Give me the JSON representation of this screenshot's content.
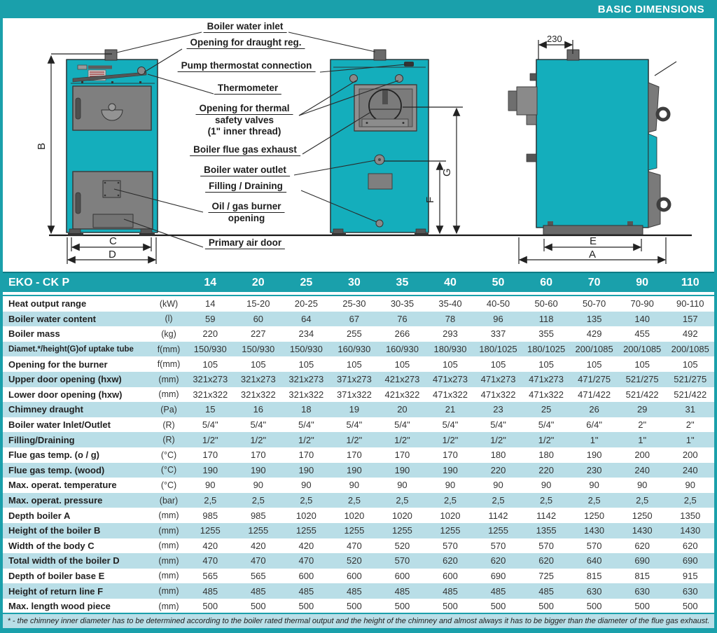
{
  "header": {
    "title": "BASIC DIMENSIONS"
  },
  "callouts": {
    "inlet": "Boiler water inlet",
    "draught": "Opening for draught reg.",
    "pump": "Pump thermostat connection",
    "thermometer": "Thermometer",
    "valves1": "Opening for thermal",
    "valves2": "safety valves",
    "valves3": "(1\" inner thread)",
    "flue": "Boiler flue gas exhaust",
    "outlet": "Boiler water outlet",
    "filling": "Filling / Draining",
    "burner1": "Oil / gas burner",
    "burner2": "opening",
    "air": "Primary air door"
  },
  "dimension_labels": {
    "A": "A",
    "B": "B",
    "C": "C",
    "D": "D",
    "E": "E",
    "F": "F",
    "G": "G",
    "top_width": "230"
  },
  "table": {
    "series_label": "EKO - CK P",
    "models": [
      "14",
      "20",
      "25",
      "30",
      "35",
      "40",
      "50",
      "60",
      "70",
      "90",
      "110"
    ],
    "rows": [
      {
        "label": "Heat output range",
        "unit": "(kW)",
        "values": [
          "14",
          "15-20",
          "20-25",
          "25-30",
          "30-35",
          "35-40",
          "40-50",
          "50-60",
          "50-70",
          "70-90",
          "90-110"
        ]
      },
      {
        "label": "Boiler water content",
        "unit": "(l)",
        "values": [
          "59",
          "60",
          "64",
          "67",
          "76",
          "78",
          "96",
          "118",
          "135",
          "140",
          "157"
        ]
      },
      {
        "label": "Boiler mass",
        "unit": "(kg)",
        "values": [
          "220",
          "227",
          "234",
          "255",
          "266",
          "293",
          "337",
          "355",
          "429",
          "455",
          "492"
        ]
      },
      {
        "label": "Diamet.*/height(G)of uptake tube",
        "unit": "f(mm)",
        "values": [
          "150/930",
          "150/930",
          "150/930",
          "160/930",
          "160/930",
          "180/930",
          "180/1025",
          "180/1025",
          "200/1085",
          "200/1085",
          "200/1085"
        ]
      },
      {
        "label": "Opening for the burner",
        "unit": "f(mm)",
        "values": [
          "105",
          "105",
          "105",
          "105",
          "105",
          "105",
          "105",
          "105",
          "105",
          "105",
          "105"
        ]
      },
      {
        "label": "Upper door opening (hxw)",
        "unit": "(mm)",
        "values": [
          "321x273",
          "321x273",
          "321x273",
          "371x273",
          "421x273",
          "471x273",
          "471x273",
          "471x273",
          "471/275",
          "521/275",
          "521/275"
        ]
      },
      {
        "label": "Lower door opening (hxw)",
        "unit": "(mm)",
        "values": [
          "321x322",
          "321x322",
          "321x322",
          "371x322",
          "421x322",
          "471x322",
          "471x322",
          "471x322",
          "471/422",
          "521/422",
          "521/422"
        ]
      },
      {
        "label": "Chimney draught",
        "unit": "(Pa)",
        "values": [
          "15",
          "16",
          "18",
          "19",
          "20",
          "21",
          "23",
          "25",
          "26",
          "29",
          "31"
        ]
      },
      {
        "label": "Boiler water Inlet/Outlet",
        "unit": "(R)",
        "values": [
          "5/4\"",
          "5/4\"",
          "5/4\"",
          "5/4\"",
          "5/4\"",
          "5/4\"",
          "5/4\"",
          "5/4\"",
          "6/4\"",
          "2\"",
          "2\""
        ]
      },
      {
        "label": "Filling/Draining",
        "unit": "(R)",
        "values": [
          "1/2\"",
          "1/2\"",
          "1/2\"",
          "1/2\"",
          "1/2\"",
          "1/2\"",
          "1/2\"",
          "1/2\"",
          "1\"",
          "1\"",
          "1\""
        ]
      },
      {
        "label": "Flue gas temp. (o / g)",
        "unit": "(°C)",
        "values": [
          "170",
          "170",
          "170",
          "170",
          "170",
          "170",
          "180",
          "180",
          "190",
          "200",
          "200"
        ]
      },
      {
        "label": "Flue gas temp. (wood)",
        "unit": "(°C)",
        "values": [
          "190",
          "190",
          "190",
          "190",
          "190",
          "190",
          "220",
          "220",
          "230",
          "240",
          "240"
        ]
      },
      {
        "label": "Max. operat. temperature",
        "unit": "(°C)",
        "values": [
          "90",
          "90",
          "90",
          "90",
          "90",
          "90",
          "90",
          "90",
          "90",
          "90",
          "90"
        ]
      },
      {
        "label": "Max. operat. pressure",
        "unit": "(bar)",
        "values": [
          "2,5",
          "2,5",
          "2,5",
          "2,5",
          "2,5",
          "2,5",
          "2,5",
          "2,5",
          "2,5",
          "2,5",
          "2,5"
        ]
      },
      {
        "label": "Depth boiler A",
        "unit": "(mm)",
        "values": [
          "985",
          "985",
          "1020",
          "1020",
          "1020",
          "1020",
          "1142",
          "1142",
          "1250",
          "1250",
          "1350"
        ]
      },
      {
        "label": "Height of the boiler B",
        "unit": "(mm)",
        "values": [
          "1255",
          "1255",
          "1255",
          "1255",
          "1255",
          "1255",
          "1255",
          "1355",
          "1430",
          "1430",
          "1430"
        ]
      },
      {
        "label": "Width of the body C",
        "unit": "(mm)",
        "values": [
          "420",
          "420",
          "420",
          "470",
          "520",
          "570",
          "570",
          "570",
          "570",
          "620",
          "620"
        ]
      },
      {
        "label": "Total width of the boiler D",
        "unit": "(mm)",
        "values": [
          "470",
          "470",
          "470",
          "520",
          "570",
          "620",
          "620",
          "620",
          "640",
          "690",
          "690"
        ]
      },
      {
        "label": "Depth of boiler base  E",
        "unit": "(mm)",
        "values": [
          "565",
          "565",
          "600",
          "600",
          "600",
          "600",
          "690",
          "725",
          "815",
          "815",
          "915"
        ]
      },
      {
        "label": "Height of return line F",
        "unit": "(mm)",
        "values": [
          "485",
          "485",
          "485",
          "485",
          "485",
          "485",
          "485",
          "485",
          "630",
          "630",
          "630"
        ]
      },
      {
        "label": "Max. length wood piece",
        "unit": "(mm)",
        "values": [
          "500",
          "500",
          "500",
          "500",
          "500",
          "500",
          "500",
          "500",
          "500",
          "500",
          "500"
        ]
      }
    ]
  },
  "footnote": "* - the chimney inner diameter has to be determined according to the boiler rated thermal output and the height of the chimney and almost always it has to be bigger than the diameter of the flue gas exhaust.",
  "colors": {
    "teal": "#1aa0ab",
    "boiler_teal": "#14aebc",
    "row_alt": "#b9dee7"
  }
}
